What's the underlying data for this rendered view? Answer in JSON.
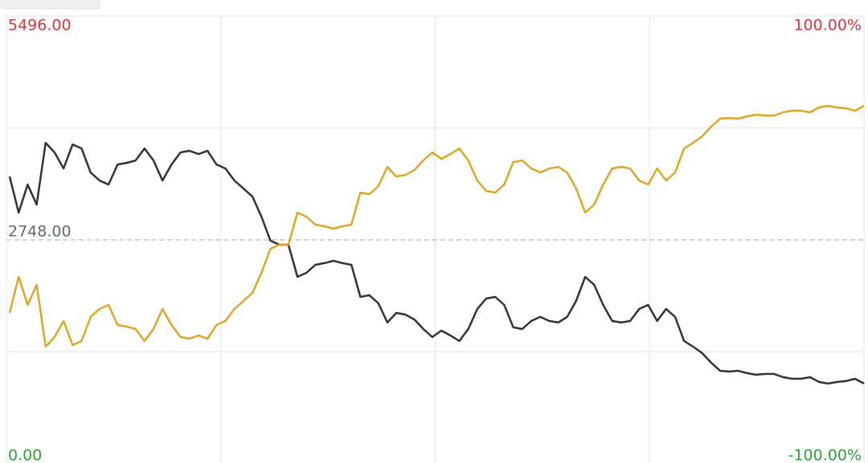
{
  "chart_data": {
    "type": "line",
    "ylim": [
      0,
      5496
    ],
    "yticks": [
      {
        "value": 0,
        "label": "0.00"
      },
      {
        "value": 2748,
        "label": "2748.00"
      },
      {
        "value": 5496,
        "label": "5496.00"
      }
    ],
    "y2lim": [
      -100,
      100
    ],
    "y2ticks": [
      {
        "value": -100,
        "label": "-100.00%"
      },
      {
        "value": 100,
        "label": "100.00%"
      }
    ],
    "grid": true,
    "series": [
      {
        "color": "#333333",
        "values": [
          3526,
          3083,
          3428,
          3182,
          3940,
          3822,
          3625,
          3920,
          3871,
          3576,
          3477,
          3428,
          3674,
          3694,
          3723,
          3871,
          3723,
          3477,
          3674,
          3822,
          3842,
          3802,
          3842,
          3674,
          3625,
          3477,
          3379,
          3280,
          3034,
          2738,
          2689,
          2689,
          2295,
          2344,
          2443,
          2463,
          2492,
          2463,
          2443,
          2049,
          2069,
          1970,
          1734,
          1852,
          1832,
          1773,
          1655,
          1556,
          1635,
          1576,
          1507,
          1655,
          1901,
          2029,
          2049,
          1950,
          1675,
          1655,
          1753,
          1803,
          1753,
          1734,
          1803,
          2000,
          2295,
          2197,
          1950,
          1753,
          1734,
          1753,
          1901,
          1950,
          1753,
          1901,
          1803,
          1507,
          1438,
          1359,
          1241,
          1142,
          1133,
          1142,
          1113,
          1093,
          1103,
          1103,
          1064,
          1044,
          1044,
          1064,
          1005,
          985,
          1005,
          1015,
          1044,
          985
        ]
      },
      {
        "color": "#e0a526",
        "values": [
          1852,
          2295,
          1950,
          2196,
          1438,
          1556,
          1753,
          1458,
          1507,
          1802,
          1901,
          1950,
          1704,
          1684,
          1655,
          1507,
          1655,
          1901,
          1704,
          1556,
          1536,
          1576,
          1536,
          1704,
          1753,
          1901,
          1999,
          2098,
          2344,
          2640,
          2689,
          2689,
          3083,
          3034,
          2935,
          2915,
          2886,
          2915,
          2935,
          3329,
          3309,
          3408,
          3644,
          3526,
          3546,
          3605,
          3723,
          3822,
          3743,
          3802,
          3871,
          3723,
          3477,
          3349,
          3329,
          3428,
          3703,
          3723,
          3625,
          3575,
          3625,
          3644,
          3575,
          3378,
          3083,
          3181,
          3428,
          3625,
          3644,
          3625,
          3477,
          3428,
          3625,
          3477,
          3575,
          3871,
          3940,
          4019,
          4137,
          4236,
          4245,
          4236,
          4265,
          4285,
          4275,
          4275,
          4314,
          4334,
          4334,
          4314,
          4373,
          4393,
          4373,
          4363,
          4334,
          4393
        ]
      }
    ]
  }
}
